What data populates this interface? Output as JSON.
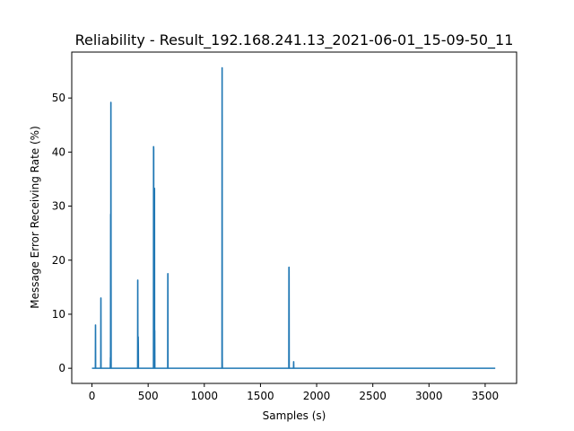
{
  "chart_data": {
    "type": "line",
    "title": "Reliability - Result_192.168.241.13_2021-06-01_15-09-50_11",
    "xlabel": "Samples (s)",
    "ylabel": "Message Error Receiving Rate (%)",
    "xlim": [
      -180,
      3780
    ],
    "ylim": [
      -2.8,
      58.5
    ],
    "xticks": [
      0,
      500,
      1000,
      1500,
      2000,
      2500,
      3000,
      3500
    ],
    "yticks": [
      0,
      10,
      20,
      30,
      40,
      50
    ],
    "grid": false,
    "line_color": "#1f77b4",
    "series": [
      {
        "name": "",
        "x": [
          0,
          30,
          31,
          32,
          33,
          78,
          79,
          80,
          81,
          163,
          164,
          165,
          166,
          167,
          168,
          169,
          170,
          171,
          172,
          173,
          174,
          175,
          406,
          407,
          408,
          409,
          410,
          411,
          412,
          413,
          414,
          415,
          547,
          548,
          549,
          550,
          551,
          552,
          553,
          554,
          555,
          556,
          557,
          558,
          559,
          560,
          561,
          562,
          565,
          566,
          567,
          568,
          569,
          570,
          571,
          572,
          573,
          674,
          675,
          676,
          677,
          678,
          1157,
          1158,
          1159,
          1160,
          1161,
          1163,
          1164,
          1165,
          1752,
          1753,
          1754,
          1755,
          1756,
          1757,
          1758,
          1759,
          1760,
          1794,
          1795,
          1796,
          1797,
          1798,
          3590
        ],
        "values": [
          0,
          0,
          8,
          8,
          0,
          0,
          13,
          13,
          0,
          0,
          2,
          0,
          28.5,
          0,
          49.2,
          49.2,
          20,
          0,
          0,
          0,
          0,
          0,
          0,
          16.3,
          16.3,
          3,
          0,
          5.8,
          5.8,
          4,
          0,
          0,
          0,
          41,
          41,
          40.5,
          0,
          0,
          26.5,
          0,
          0,
          33.3,
          33.3,
          0,
          7,
          0,
          0,
          0,
          0,
          0,
          0,
          0,
          0,
          0,
          0,
          0,
          0,
          0,
          17.5,
          17.5,
          0,
          0,
          0,
          55.6,
          55.6,
          2,
          0,
          0,
          0,
          0,
          0,
          18.7,
          18.7,
          18,
          0,
          0,
          0,
          0,
          0,
          0,
          1.2,
          1.2,
          0,
          0,
          0
        ]
      }
    ]
  }
}
